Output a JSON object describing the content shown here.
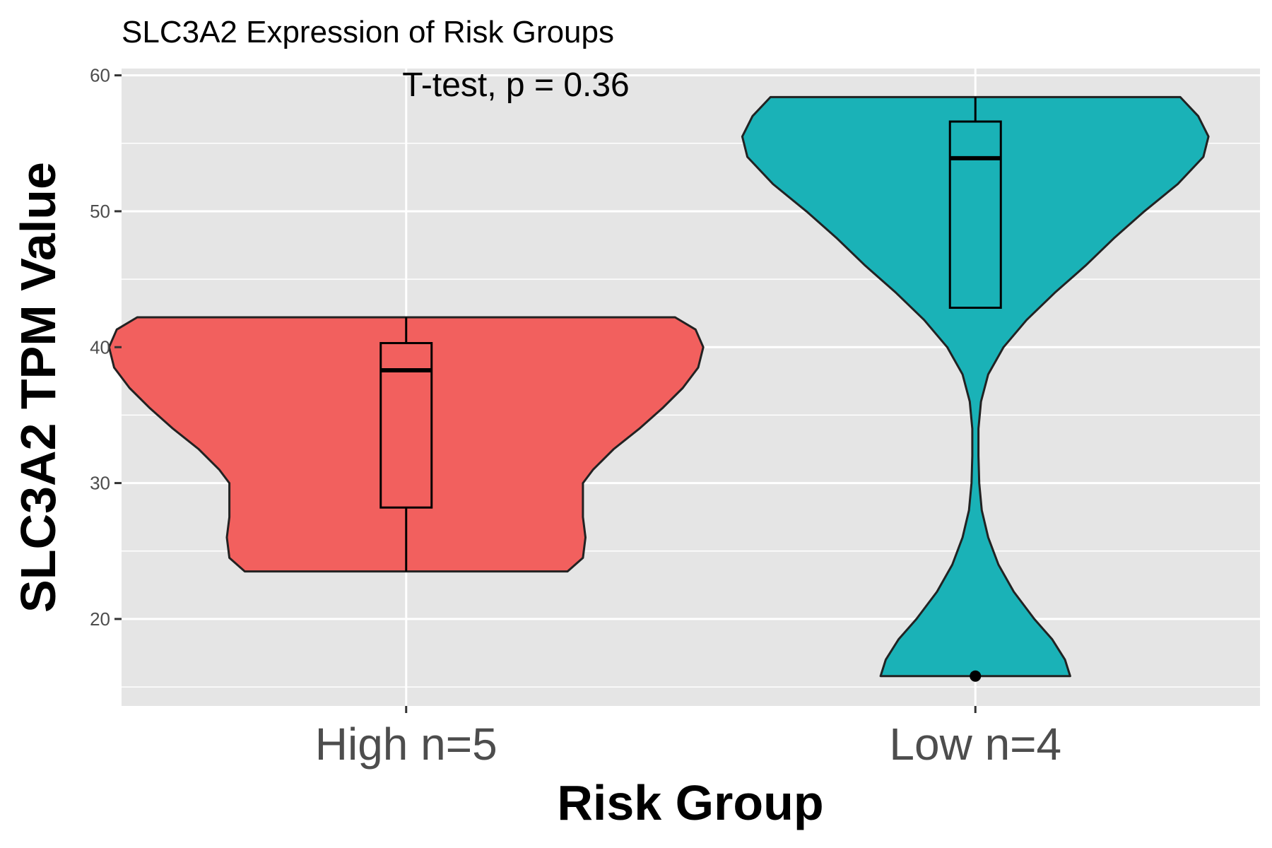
{
  "chart_data": {
    "type": "violin",
    "title": "SLC3A2 Expression of Risk Groups",
    "annotation": "T-test, p = 0.36",
    "xlabel": "Risk Group",
    "ylabel": "SLC3A2 TPM Value",
    "categories": [
      "High n=5",
      "Low n=4"
    ],
    "ylim": [
      13.6,
      60.5
    ],
    "yticks": [
      20,
      30,
      40,
      50,
      60
    ],
    "grid": true,
    "legend": "none",
    "colors": {
      "panel_bg": "#E5E5E5",
      "grid": "#FFFFFF",
      "outline": "#222222",
      "tick_text": "#4D4D4D"
    },
    "groups": [
      {
        "name": "High n=5",
        "fill": "#F2605E",
        "min": 23.5,
        "q1": 28.2,
        "median": 38.3,
        "q3": 40.3,
        "max": 42.2,
        "outliers": [],
        "density_profile": [
          [
            23.5,
            0.63
          ],
          [
            24.5,
            0.69
          ],
          [
            26.0,
            0.7
          ],
          [
            27.5,
            0.69
          ],
          [
            29.0,
            0.69
          ],
          [
            30.0,
            0.69
          ],
          [
            31.0,
            0.73
          ],
          [
            32.5,
            0.81
          ],
          [
            34.0,
            0.91
          ],
          [
            35.5,
            1.0
          ],
          [
            37.0,
            1.08
          ],
          [
            38.5,
            1.14
          ],
          [
            40.0,
            1.16
          ],
          [
            41.3,
            1.13
          ],
          [
            42.2,
            1.05
          ]
        ]
      },
      {
        "name": "Low n=4",
        "fill": "#1AB2B7",
        "min": 15.8,
        "q1": 42.9,
        "median": 53.9,
        "q3": 56.6,
        "max": 58.4,
        "outliers": [
          15.8
        ],
        "density_profile": [
          [
            15.8,
            0.37
          ],
          [
            17.0,
            0.35
          ],
          [
            18.5,
            0.3
          ],
          [
            20.0,
            0.23
          ],
          [
            22.0,
            0.15
          ],
          [
            24.0,
            0.09
          ],
          [
            26.0,
            0.05
          ],
          [
            28.0,
            0.025
          ],
          [
            30.0,
            0.015
          ],
          [
            32.0,
            0.012
          ],
          [
            34.0,
            0.012
          ],
          [
            36.0,
            0.022
          ],
          [
            38.0,
            0.05
          ],
          [
            40.0,
            0.11
          ],
          [
            42.0,
            0.2
          ],
          [
            44.0,
            0.31
          ],
          [
            46.0,
            0.43
          ],
          [
            48.0,
            0.54
          ],
          [
            50.0,
            0.66
          ],
          [
            52.0,
            0.79
          ],
          [
            54.0,
            0.89
          ],
          [
            55.5,
            0.91
          ],
          [
            57.0,
            0.87
          ],
          [
            58.0,
            0.82
          ],
          [
            58.4,
            0.8
          ]
        ]
      }
    ]
  }
}
